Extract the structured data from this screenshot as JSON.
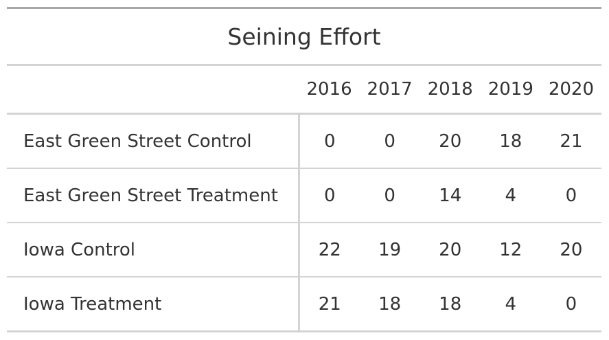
{
  "table": {
    "title": "Seining Effort",
    "stub_header": "",
    "columns": [
      "2016",
      "2017",
      "2018",
      "2019",
      "2020"
    ],
    "rows": [
      {
        "label": "East Green Street Control",
        "values": [
          "0",
          "0",
          "20",
          "18",
          "21"
        ]
      },
      {
        "label": "East Green Street Treatment",
        "values": [
          "0",
          "0",
          "14",
          "4",
          "0"
        ]
      },
      {
        "label": "Iowa Control",
        "values": [
          "22",
          "19",
          "20",
          "12",
          "20"
        ]
      },
      {
        "label": "Iowa Treatment",
        "values": [
          "21",
          "18",
          "18",
          "4",
          "0"
        ]
      }
    ]
  }
}
